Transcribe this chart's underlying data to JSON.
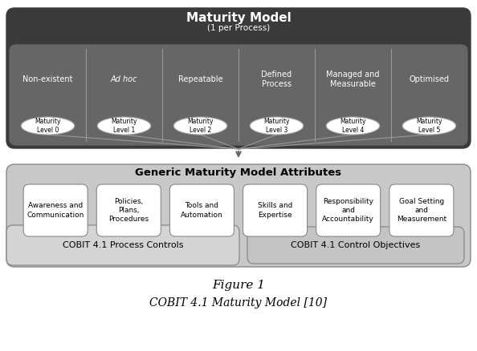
{
  "title": "Maturity Model",
  "subtitle": "(1 per Process)",
  "levels": [
    "Non-existent",
    "Ad hoc",
    "Repeatable",
    "Defined\nProcess",
    "Managed and\nMeasurable",
    "Optimised"
  ],
  "level_labels": [
    "Maturity\nLevel 0",
    "Maturity\nLevel 1",
    "Maturity\nLevel 2",
    "Maturity\nLevel 3",
    "Maturity\nLevel 4",
    "Maturity\nLevel 5"
  ],
  "attributes_title": "Generic Maturity Model Attributes",
  "attributes": [
    "Awareness and\nCommunication",
    "Policies,\nPlans,\nProcedures",
    "Tools and\nAutomation",
    "Skills and\nExpertise",
    "Responsibility\nand\nAccountability",
    "Goal Setting\nand\nMeasurement"
  ],
  "cobit_left": "COBIT 4.1 Process Controls",
  "cobit_right": "COBIT 4.1 Control Objectives",
  "figure_label": "Figure 1",
  "figure_caption": "COBIT 4.1 Maturity Model [10]",
  "bg_color": "#ffffff",
  "top_outer_color": "#3a3a3a",
  "top_inner_color": "#666666",
  "bot_outer_color": "#c8c8c8",
  "bot_inner_color": "#e0e0e0",
  "attr_box_color": "#ffffff",
  "cobit_left_color": "#d4d4d4",
  "cobit_right_color": "#c4c4c4",
  "divider_color": "#999999",
  "edge_color": "#888888",
  "arrow_color": "#666666",
  "line_color": "#999999"
}
